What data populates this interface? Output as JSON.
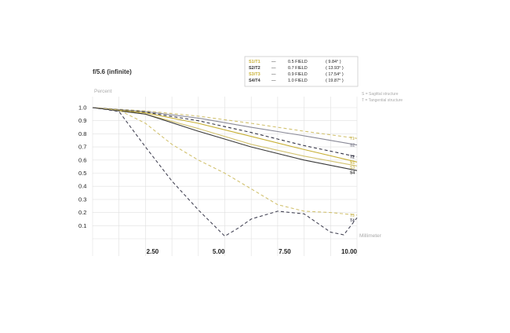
{
  "chart_data": {
    "type": "line",
    "title": "f/5.6 (infinite)",
    "ylabel": "Percent",
    "xlabel": "Millimeter",
    "xlim": [
      0,
      10
    ],
    "ylim": [
      0,
      1.0
    ],
    "yticks": [
      "1.0",
      "0.9",
      "0.8",
      "0.7",
      "0.6",
      "0.5",
      "0.4",
      "0.3",
      "0.2",
      "0.1"
    ],
    "xticks": [
      "2.50",
      "5.00",
      "7.50",
      "10.00"
    ],
    "grid": true,
    "legend": {
      "placement": "top-right",
      "rows": [
        {
          "key": "S1/T1",
          "dash": "—",
          "field": "0.5 FIELD",
          "angle": "( 9.84° )",
          "color": "#c8b035"
        },
        {
          "key": "S2/T2",
          "dash": "—",
          "field": "0.7 FIELD",
          "angle": "( 13.93° )",
          "color": "#333333"
        },
        {
          "key": "S3/T3",
          "dash": "—",
          "field": "0.9 FIELD",
          "angle": "( 17.54° )",
          "color": "#c8b035"
        },
        {
          "key": "S4/T4",
          "dash": "—",
          "field": "1.0 FIELD",
          "angle": "( 19.87° )",
          "color": "#333333"
        }
      ]
    },
    "notes": [
      "S = Sagittal structure",
      "T = Tangential structure"
    ],
    "series": [
      {
        "name": "T1",
        "color": "#d2c270",
        "dashed": true,
        "x": [
          0,
          2,
          4,
          6,
          8,
          10
        ],
        "y": [
          1.0,
          0.975,
          0.935,
          0.88,
          0.82,
          0.765
        ]
      },
      {
        "name": "S2",
        "color": "#8a8a98",
        "dashed": false,
        "x": [
          0,
          2,
          4,
          6,
          8,
          10
        ],
        "y": [
          1.0,
          0.97,
          0.92,
          0.85,
          0.785,
          0.715
        ]
      },
      {
        "name": "T2",
        "color": "#333344",
        "dashed": true,
        "x": [
          0,
          2,
          4,
          6,
          8,
          10
        ],
        "y": [
          1.0,
          0.965,
          0.9,
          0.81,
          0.71,
          0.625
        ]
      },
      {
        "name": "S1",
        "color": "#c8b035",
        "dashed": false,
        "x": [
          0,
          2,
          4,
          6,
          8,
          10
        ],
        "y": [
          1.0,
          0.96,
          0.88,
          0.78,
          0.68,
          0.585
        ]
      },
      {
        "name": "S3",
        "color": "#d2c270",
        "dashed": false,
        "x": [
          0,
          2,
          4,
          6,
          8,
          10
        ],
        "y": [
          1.0,
          0.95,
          0.84,
          0.72,
          0.63,
          0.555
        ]
      },
      {
        "name": "S4",
        "color": "#3a3a3a",
        "dashed": false,
        "x": [
          0,
          2,
          4,
          6,
          8,
          10
        ],
        "y": [
          1.0,
          0.95,
          0.82,
          0.7,
          0.6,
          0.52
        ]
      },
      {
        "name": "T3",
        "color": "#d2c270",
        "dashed": true,
        "x": [
          0,
          1,
          2,
          3,
          4,
          5,
          6,
          7,
          8,
          9,
          10
        ],
        "y": [
          1.0,
          0.98,
          0.88,
          0.72,
          0.6,
          0.5,
          0.38,
          0.26,
          0.21,
          0.2,
          0.18
        ]
      },
      {
        "name": "T4",
        "color": "#444455",
        "dashed": true,
        "x": [
          0,
          1,
          2,
          3,
          4,
          5,
          5.5,
          6,
          7,
          8,
          9,
          9.5,
          10
        ],
        "y": [
          1.0,
          0.97,
          0.7,
          0.44,
          0.22,
          0.02,
          0.08,
          0.15,
          0.21,
          0.19,
          0.05,
          0.03,
          0.16
        ]
      }
    ]
  }
}
